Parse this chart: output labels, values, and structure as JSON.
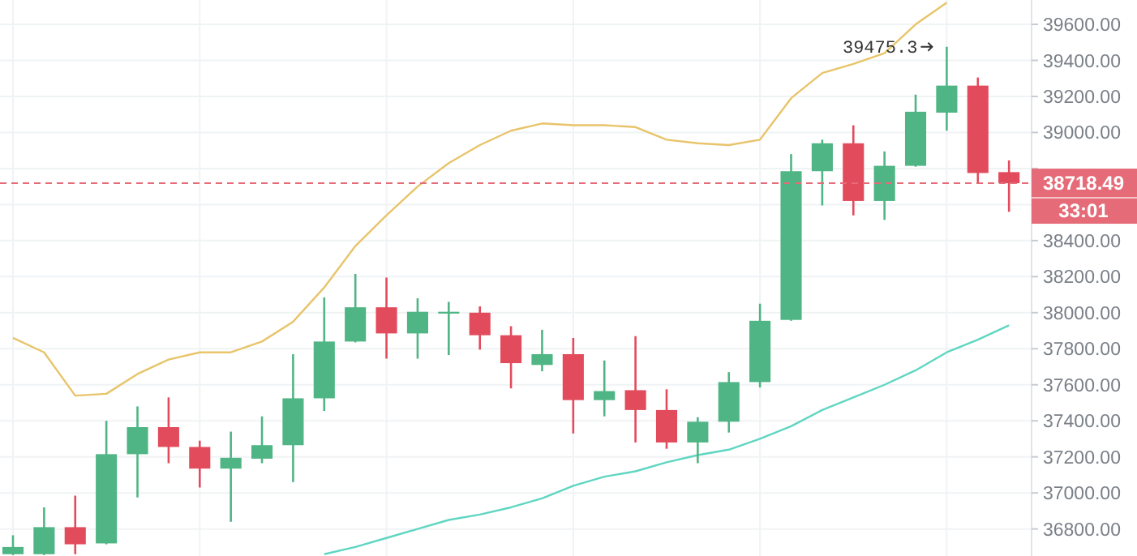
{
  "chart_data": {
    "type": "candlestick",
    "categories": [
      null,
      null,
      null,
      null,
      null,
      null,
      null,
      null,
      null,
      null,
      null,
      null,
      null,
      null,
      null,
      null,
      null,
      null,
      null,
      null,
      null,
      null,
      null,
      null,
      null,
      null,
      null,
      null,
      null,
      null,
      null,
      null,
      null
    ],
    "ohlc": [
      [
        36660,
        36765,
        36655,
        36700
      ],
      [
        36660,
        36920,
        36655,
        36810
      ],
      [
        36810,
        36985,
        36660,
        36715
      ],
      [
        36720,
        37400,
        36715,
        37215
      ],
      [
        37215,
        37480,
        36975,
        37365
      ],
      [
        37365,
        37530,
        37165,
        37255
      ],
      [
        37255,
        37290,
        37030,
        37135
      ],
      [
        37135,
        37340,
        36840,
        37195
      ],
      [
        37190,
        37425,
        37165,
        37265
      ],
      [
        37265,
        37770,
        37060,
        37525
      ],
      [
        37525,
        38085,
        37455,
        37840
      ],
      [
        37840,
        38215,
        37835,
        38030
      ],
      [
        38030,
        38195,
        37745,
        37885
      ],
      [
        37885,
        38080,
        37745,
        38005
      ],
      [
        37995,
        38060,
        37765,
        38005
      ],
      [
        38000,
        38035,
        37795,
        37875
      ],
      [
        37875,
        37925,
        37580,
        37720
      ],
      [
        37710,
        37905,
        37675,
        37770
      ],
      [
        37770,
        37860,
        37330,
        37515
      ],
      [
        37515,
        37735,
        37425,
        37565
      ],
      [
        37570,
        37870,
        37280,
        37460
      ],
      [
        37460,
        37575,
        37245,
        37280
      ],
      [
        37280,
        37420,
        37165,
        37395
      ],
      [
        37395,
        37670,
        37335,
        37615
      ],
      [
        37615,
        38050,
        37585,
        37955
      ],
      [
        37960,
        38880,
        37955,
        38785
      ],
      [
        38785,
        38960,
        38595,
        38940
      ],
      [
        38940,
        39040,
        38540,
        38620
      ],
      [
        38620,
        38895,
        38515,
        38815
      ],
      [
        38815,
        39210,
        38810,
        39115
      ],
      [
        39110,
        39475.3,
        39010,
        39260
      ],
      [
        39260,
        39305,
        38715,
        38775
      ],
      [
        38780,
        38845,
        38560,
        38718.49
      ]
    ],
    "colors": [
      "#4fb584",
      "#4fb584",
      "#e24b5c",
      "#4fb584",
      "#4fb584",
      "#e24b5c",
      "#e24b5c",
      "#4fb584",
      "#4fb584",
      "#4fb584",
      "#4fb584",
      "#4fb584",
      "#e24b5c",
      "#4fb584",
      "#4fb584",
      "#e24b5c",
      "#e24b5c",
      "#4fb584",
      "#e24b5c",
      "#4fb584",
      "#e24b5c",
      "#e24b5c",
      "#4fb584",
      "#4fb584",
      "#4fb584",
      "#4fb584",
      "#4fb584",
      "#e24b5c",
      "#4fb584",
      "#4fb584",
      "#4fb584",
      "#e24b5c",
      "#e24b5c"
    ],
    "series": [
      {
        "type": "line",
        "color": "#e8c46a",
        "values": [
          37860,
          37780,
          37540,
          37550,
          37660,
          37740,
          37780,
          37780,
          37840,
          37950,
          38140,
          38370,
          38540,
          38700,
          38830,
          38930,
          39010,
          39050,
          39040,
          39040,
          39030,
          38960,
          38940,
          38930,
          38960,
          39190,
          39330,
          39380,
          39440,
          39600,
          39720,
          null,
          null
        ]
      },
      {
        "type": "line",
        "color": "#5fd6c2",
        "values": [
          null,
          null,
          null,
          null,
          null,
          null,
          null,
          null,
          null,
          null,
          36660,
          36700,
          36750,
          36800,
          36850,
          36880,
          36920,
          36970,
          37040,
          37090,
          37120,
          37170,
          37210,
          37240,
          37300,
          37370,
          37460,
          37530,
          37600,
          37680,
          37780,
          37850,
          37930
        ]
      }
    ],
    "ylim": [
      36650,
      39735
    ],
    "yticks": [
      {
        "value": 36800,
        "label": "36800.00"
      },
      {
        "value": 37000,
        "label": "37000.00"
      },
      {
        "value": 37200,
        "label": "37200.00"
      },
      {
        "value": 37400,
        "label": "37400.00"
      },
      {
        "value": 37600,
        "label": "37600.00"
      },
      {
        "value": 37800,
        "label": "37800.00"
      },
      {
        "value": 38000,
        "label": "38000.00"
      },
      {
        "value": 38200,
        "label": "38200.00"
      },
      {
        "value": 38400,
        "label": "38400.00"
      },
      {
        "value": 38600,
        "label": null
      },
      {
        "value": 38800,
        "label": null
      },
      {
        "value": 39000,
        "label": "39000.00"
      },
      {
        "value": 39200,
        "label": "39200.00"
      },
      {
        "value": 39400,
        "label": "39400.00"
      },
      {
        "value": 39600,
        "label": "39600.00"
      }
    ],
    "grid": true,
    "ref_lines": [
      {
        "axis": "y",
        "value": 38718.49,
        "label": "38718.49",
        "color": "#e56b78",
        "line_style": "dashed"
      }
    ],
    "annotations": [
      {
        "text": "39475.3",
        "y": 39475.3
      },
      "33:01"
    ]
  }
}
